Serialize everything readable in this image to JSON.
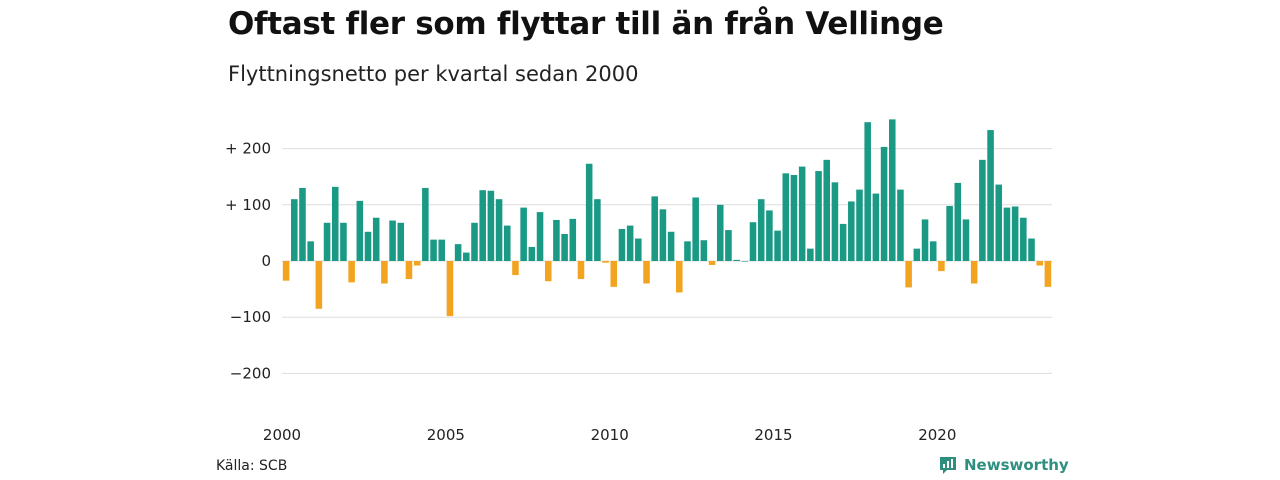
{
  "header": {
    "title": "Oftast fler som flyttar till än från Vellinge",
    "subtitle": "Flyttningsnetto per kvartal sedan 2000"
  },
  "footer": {
    "source": "Källa: SCB",
    "brand": "Newsworthy"
  },
  "colors": {
    "positive": "#1a9985",
    "negative": "#f2a31f",
    "grid": "#dddddd",
    "brand": "#2f8f7e"
  },
  "chart_data": {
    "type": "bar",
    "title": "Oftast fler som flyttar till än från Vellinge",
    "subtitle": "Flyttningsnetto per kvartal sedan 2000",
    "xlabel": "",
    "ylabel": "",
    "ylim": [
      -250,
      250
    ],
    "yticks": [
      200,
      100,
      0,
      -100,
      -200
    ],
    "ytick_labels": [
      "+ 200",
      "+ 100",
      "0",
      "−100",
      "−200"
    ],
    "xtick_labels": [
      "2000",
      "2005",
      "2010",
      "2015",
      "2020"
    ],
    "start_year": 2000,
    "periods_per_year": 4,
    "grid": true,
    "legend": "none",
    "values": [
      -35,
      110,
      130,
      35,
      -85,
      68,
      132,
      68,
      -38,
      107,
      52,
      77,
      -40,
      72,
      68,
      -32,
      -8,
      130,
      38,
      38,
      -98,
      30,
      15,
      68,
      126,
      125,
      110,
      63,
      -25,
      95,
      25,
      87,
      -36,
      73,
      48,
      75,
      -32,
      173,
      110,
      -3,
      -46,
      57,
      63,
      40,
      -40,
      115,
      92,
      52,
      -56,
      35,
      113,
      37,
      -7,
      100,
      55,
      2,
      0,
      69,
      110,
      90,
      54,
      156,
      153,
      168,
      22,
      160,
      180,
      140,
      66,
      106,
      127,
      247,
      120,
      203,
      252,
      127,
      -47,
      22,
      74,
      35,
      -18,
      98,
      139,
      74,
      -40,
      180,
      233,
      136,
      95,
      97,
      77,
      40,
      -8,
      -46
    ]
  }
}
